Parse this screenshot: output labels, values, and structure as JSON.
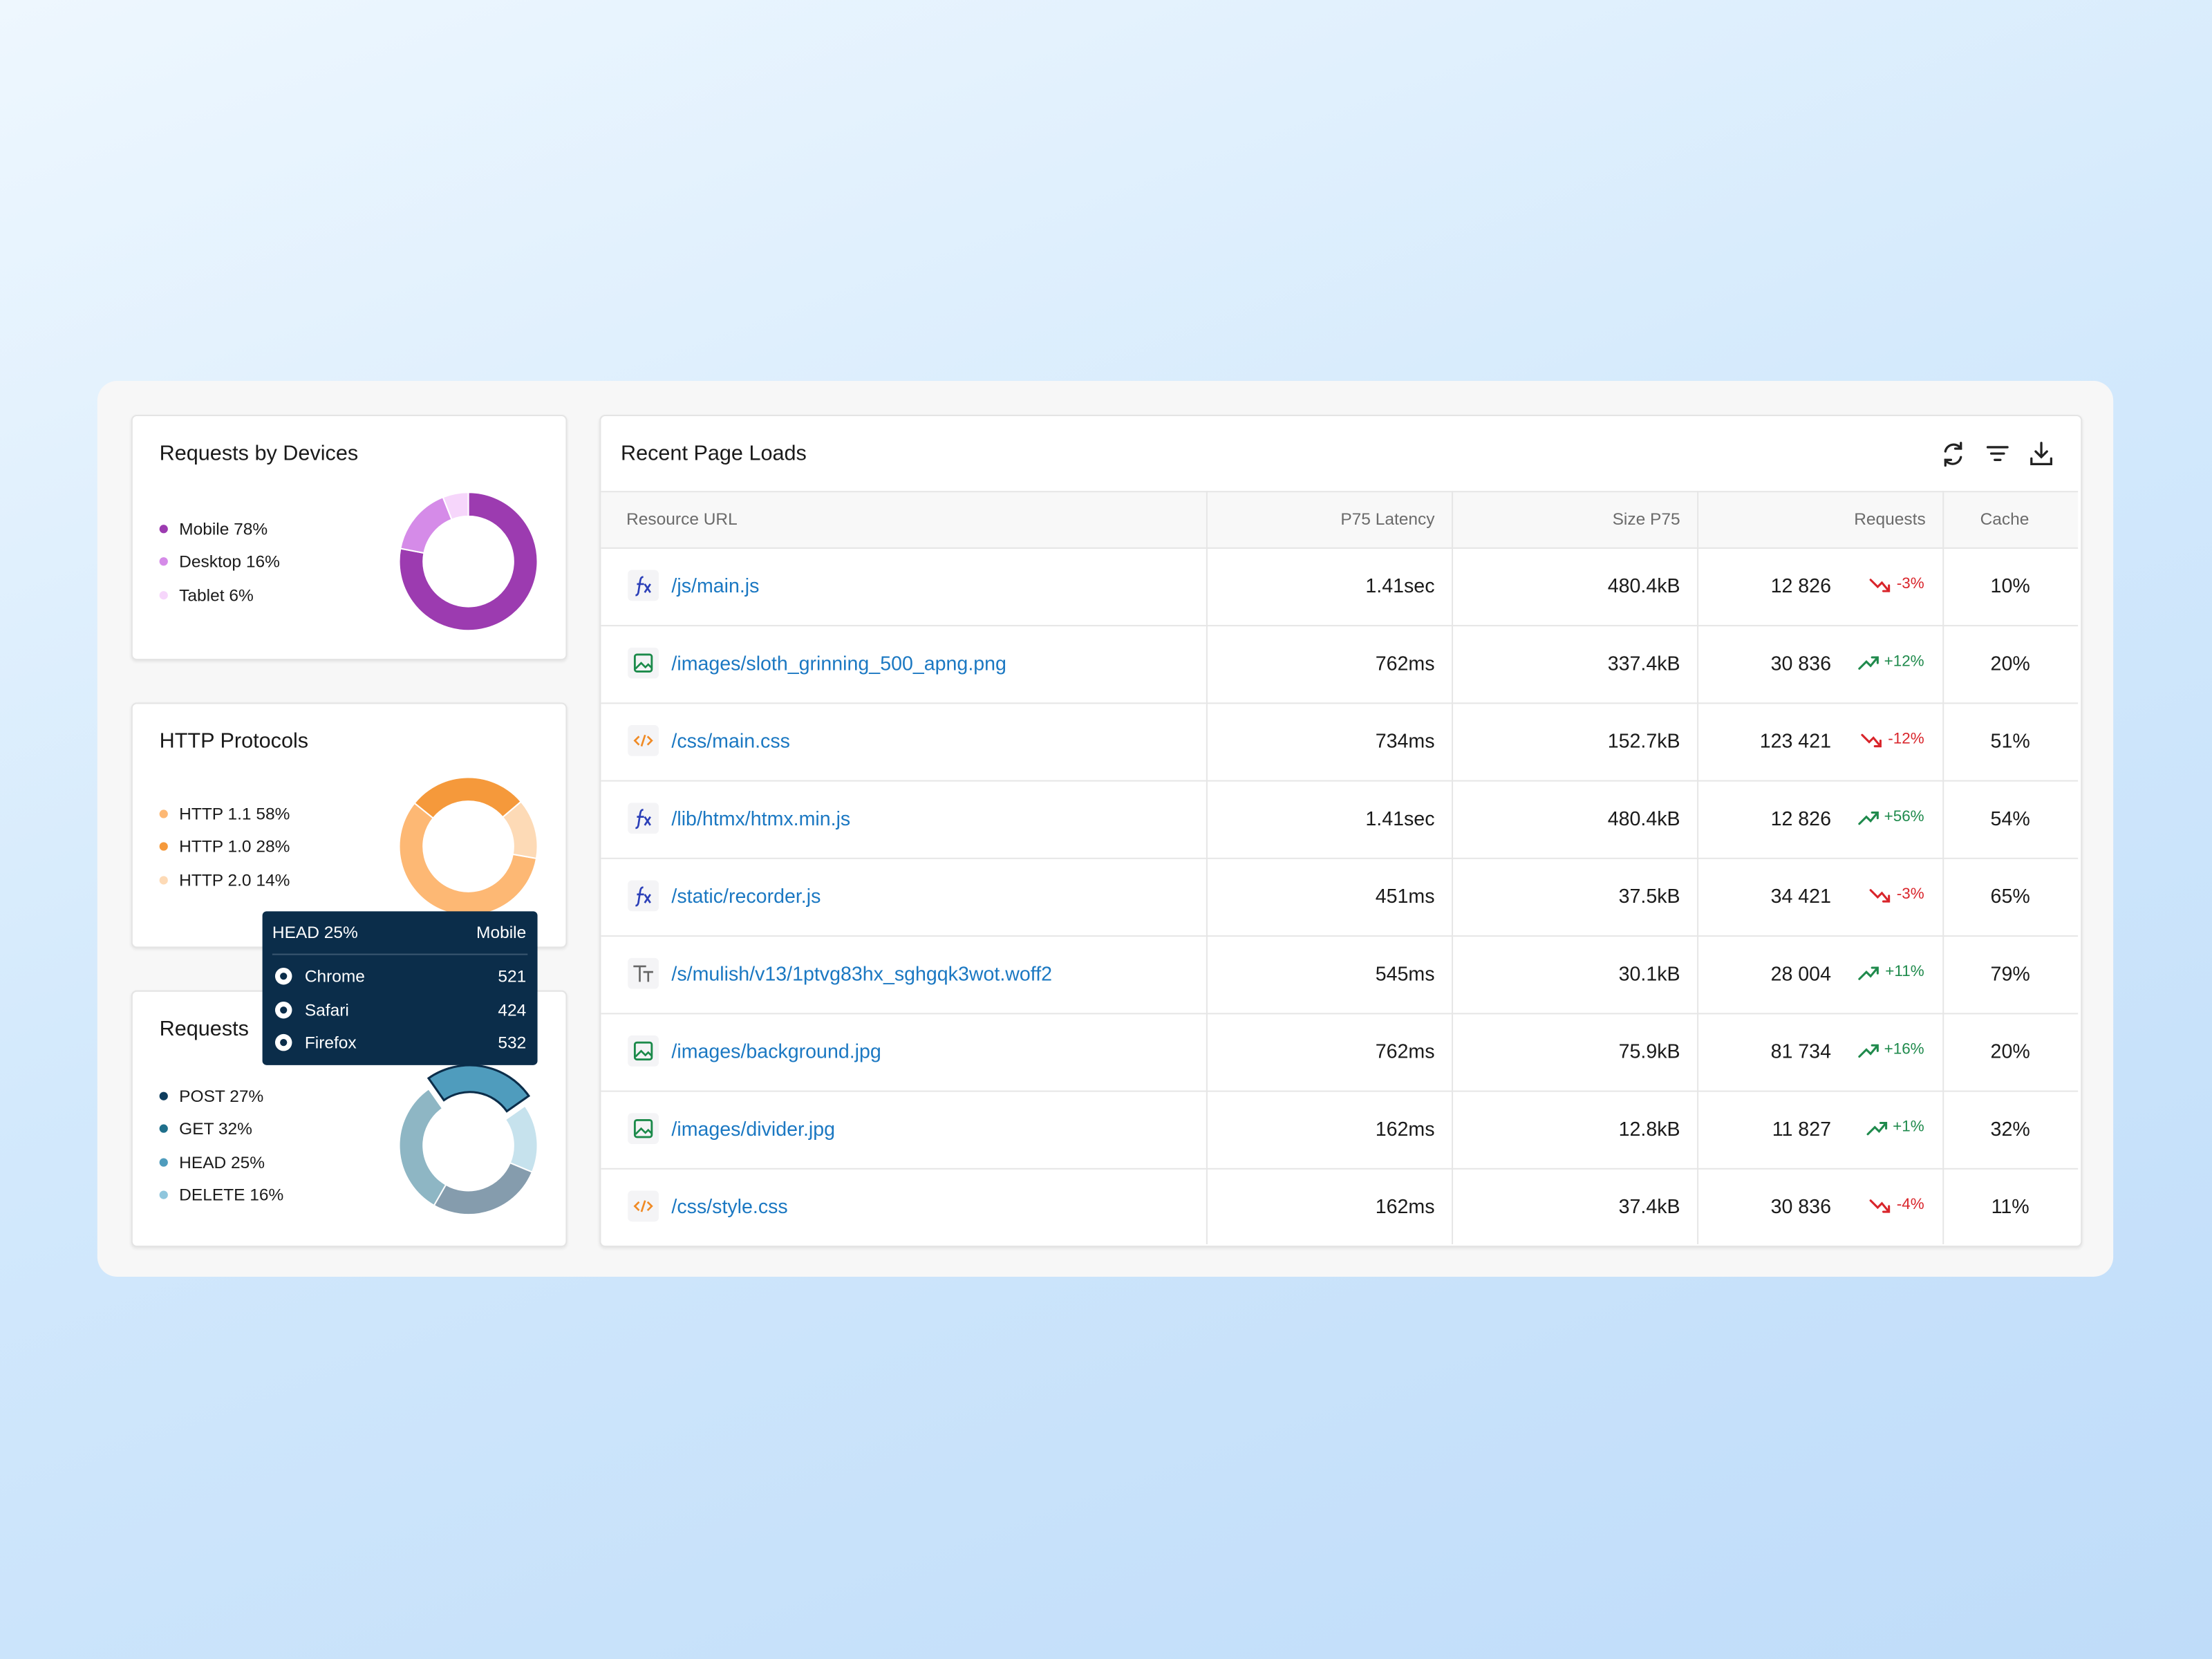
{
  "panels": [
    {
      "title": "Requests by Devices",
      "items": [
        {
          "label": "Mobile 78%",
          "value": 78,
          "color": "#9c3bb0"
        },
        {
          "label": "Desktop 16%",
          "value": 16,
          "color": "#d58be8"
        },
        {
          "label": "Tablet 6%",
          "value": 6,
          "color": "#f6d6fb"
        }
      ]
    },
    {
      "title": "HTTP Protocols",
      "items": [
        {
          "label": "HTTP 1.1 58%",
          "value": 58,
          "color": "#fdb874"
        },
        {
          "label": "HTTP 1.0 28%",
          "value": 28,
          "color": "#f5993b"
        },
        {
          "label": "HTTP 2.0 14%",
          "value": 14,
          "color": "#fddab6"
        }
      ]
    },
    {
      "title": "Requests",
      "items": [
        {
          "label": "POST 27%",
          "value": 27,
          "color": "#0e3c5d"
        },
        {
          "label": "GET 32%",
          "value": 32,
          "color": "#1f6f8b"
        },
        {
          "label": "HEAD 25%",
          "value": 25,
          "color": "#4f9cbd"
        },
        {
          "label": "DELETE 16%",
          "value": 16,
          "color": "#8fc6dd"
        }
      ]
    }
  ],
  "tooltip": {
    "title": "HEAD 25%",
    "device": "Mobile",
    "rows": [
      {
        "browser": "Chrome",
        "value": "521"
      },
      {
        "browser": "Safari",
        "value": "424"
      },
      {
        "browser": "Firefox",
        "value": "532"
      }
    ]
  },
  "table": {
    "title": "Recent Page Loads",
    "columns": [
      "Resource URL",
      "P75 Latency",
      "Size P75",
      "Requests",
      "Cache"
    ],
    "rows": [
      {
        "url": "/js/main.js",
        "latency": "1.41sec",
        "size": "480.4kB",
        "requests": "12 826",
        "change": "-3%",
        "cache": "10%"
      },
      {
        "url": "/images/sloth_grinning_500_apng.png",
        "latency": "762ms",
        "size": "337.4kB",
        "requests": "30 836",
        "change": "+12%",
        "cache": "20%"
      },
      {
        "url": "/css/main.css",
        "latency": "734ms",
        "size": "152.7kB",
        "requests": "123 421",
        "change": "-12%",
        "cache": "51%"
      },
      {
        "url": "/lib/htmx/htmx.min.js",
        "latency": "1.41sec",
        "size": "480.4kB",
        "requests": "12 826",
        "change": "+56%",
        "cache": "54%"
      },
      {
        "url": "/static/recorder.js",
        "latency": "451ms",
        "size": "37.5kB",
        "requests": "34 421",
        "change": "-3%",
        "cache": "65%"
      },
      {
        "url": "/s/mulish/v13/1ptvg83hx_sghgqk3wot.woff2",
        "latency": "545ms",
        "size": "30.1kB",
        "requests": "28 004",
        "change": "+11%",
        "cache": "79%"
      },
      {
        "url": "/images/background.jpg",
        "latency": "762ms",
        "size": "75.9kB",
        "requests": "81 734",
        "change": "+16%",
        "cache": "20%"
      },
      {
        "url": "/images/divider.jpg",
        "latency": "162ms",
        "size": "12.8kB",
        "requests": "11 827",
        "change": "+1%",
        "cache": "32%"
      },
      {
        "url": "/css/style.css",
        "latency": "162ms",
        "size": "37.4kB",
        "requests": "30 836",
        "change": "-4%",
        "cache": "11%"
      }
    ]
  }
}
